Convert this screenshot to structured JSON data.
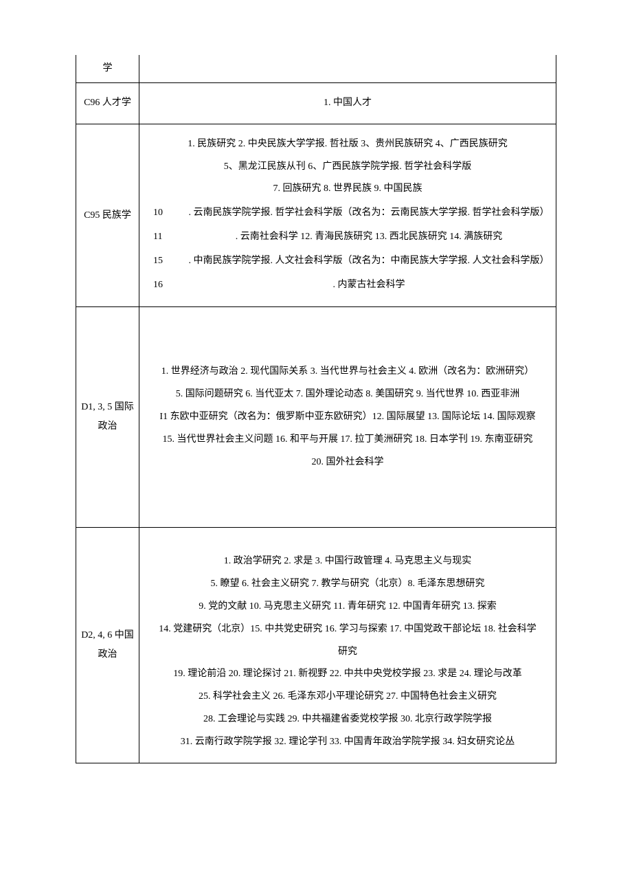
{
  "rows": [
    {
      "category": "学",
      "lines": []
    },
    {
      "category": "C96 人才学",
      "lines": [
        {
          "type": "center",
          "text": "1. 中国人才"
        }
      ]
    },
    {
      "category": "C95 民族学",
      "lines": [
        {
          "type": "center",
          "text": "1. 民族研究 2. 中央民族大学学报. 哲社版 3、贵州民族研究 4、广西民族研究"
        },
        {
          "type": "center",
          "text": "5、黑龙江民族从刊 6、广西民族学院学报. 哲学社会科学版"
        },
        {
          "type": "center",
          "text": "7. 回族研宄 8. 世界民族 9. 中国民族"
        },
        {
          "type": "indent",
          "num": "10",
          "text": ". 云南民族学院学报. 哲学社会科学版（改名为：云南民族大学学报. 哲学社会科学版）"
        },
        {
          "type": "indent",
          "num": "11",
          "text": ". 云南社会科学 12. 青海民族研究 13. 西北民族研究 14. 满族研究"
        },
        {
          "type": "indent",
          "num": "15",
          "text": ". 中南民族学院学报. 人文社会科学版（改名为：中南民族大学学报. 人文社会科学版）"
        },
        {
          "type": "indent",
          "num": "16",
          "text": ". 内蒙古社会科学"
        }
      ]
    },
    {
      "category": "D1, 3, 5 国际政治",
      "pad": true,
      "lines": [
        {
          "type": "center",
          "text": "1. 世界经济与政治 2. 现代国际关系 3. 当代世界与社会主义 4. 欧洲（改名为：欧洲研究）"
        },
        {
          "type": "center",
          "text": "5. 国际问题研究 6. 当代亚太 7. 国外理论动态 8. 美国研究 9. 当代世界 10. 西亚非洲"
        },
        {
          "type": "center",
          "text": "I1 东欧中亚研究（改名为：俄罗斯中亚东欧研究）12. 国际展望 13. 国际论坛 14. 国际观察"
        },
        {
          "type": "center",
          "text": "15. 当代世界社会主义问题 16. 和平与开展 17. 拉丁美洲研究 18. 日本学刊 19. 东南亚研究"
        },
        {
          "type": "center",
          "text": "20. 国外社会科学"
        }
      ]
    },
    {
      "category": "D2, 4, 6 中国政治",
      "padTop": true,
      "lines": [
        {
          "type": "center",
          "text": "1. 政治学研究 2. 求是 3. 中国行政管理 4. 马克思主义与现实"
        },
        {
          "type": "center",
          "text": "5. 瞭望 6. 社会主义研究 7. 教学与研究（北京）8. 毛泽东思想研究"
        },
        {
          "type": "center",
          "text": "9. 党的文献 10. 马克思主义研究 11. 青年研究 12. 中国青年研究 13. 探索"
        },
        {
          "type": "center",
          "text": "14. 党建研究（北京）15. 中共党史研究 16. 学习与探索 17. 中国党政干部论坛 18. 社会科学"
        },
        {
          "type": "center",
          "text": "研究"
        },
        {
          "type": "center",
          "text": "19. 理论前沿 20. 理论探讨 21. 新视野 22. 中共中央党校学报 23. 求是 24. 理论与改革"
        },
        {
          "type": "center",
          "text": "25. 科学社会主义 26. 毛泽东邓小平理论研究 27. 中国特色社会主义研究"
        },
        {
          "type": "center",
          "text": "28. 工会理论与实践 29. 中共福建省委党校学报 30. 北京行政学院学报"
        },
        {
          "type": "center",
          "text": "31. 云南行政学院学报 32. 理论学刊 33. 中国青年政治学院学报 34. 妇女研究论丛"
        }
      ]
    }
  ]
}
